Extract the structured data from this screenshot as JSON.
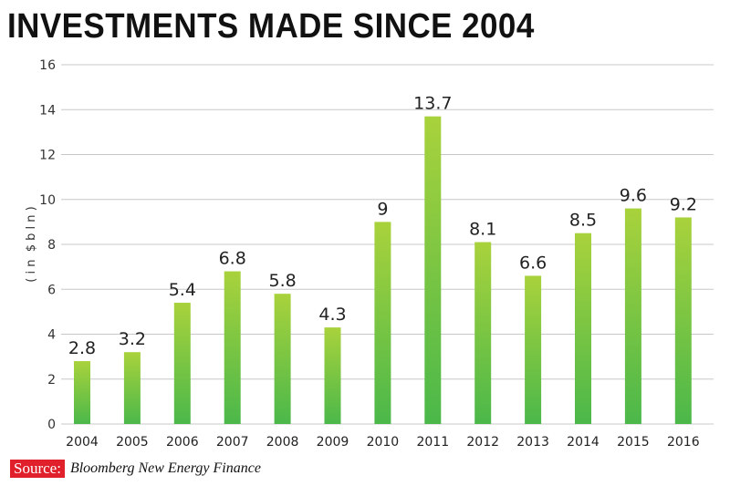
{
  "chart_data": {
    "type": "bar",
    "title": "INVESTMENTS MADE SINCE 2004",
    "ylabel": "( i n  $ b l n )",
    "xlabel": "",
    "categories": [
      "2004",
      "2005",
      "2006",
      "2007",
      "2008",
      "2009",
      "2010",
      "2011",
      "2012",
      "2013",
      "2014",
      "2015",
      "2016"
    ],
    "values": [
      2.8,
      3.2,
      5.4,
      6.8,
      5.8,
      4.3,
      9,
      13.7,
      8.1,
      6.6,
      8.5,
      9.6,
      9.2
    ],
    "data_labels": [
      "2.8",
      "3.2",
      "5.4",
      "6.8",
      "5.8",
      "4.3",
      "9",
      "13.7",
      "8.1",
      "6.6",
      "8.5",
      "9.6",
      "9.2"
    ],
    "ylim": [
      0,
      16
    ],
    "yticks": [
      0,
      2,
      4,
      6,
      8,
      10,
      12,
      14,
      16
    ],
    "grid": true,
    "colors": {
      "bar_top": "#a9d23c",
      "bar_bottom": "#4bb84a",
      "grid": "#c8c8c8"
    }
  },
  "source": {
    "label": "Source:",
    "text": "Bloomberg New Energy Finance"
  }
}
